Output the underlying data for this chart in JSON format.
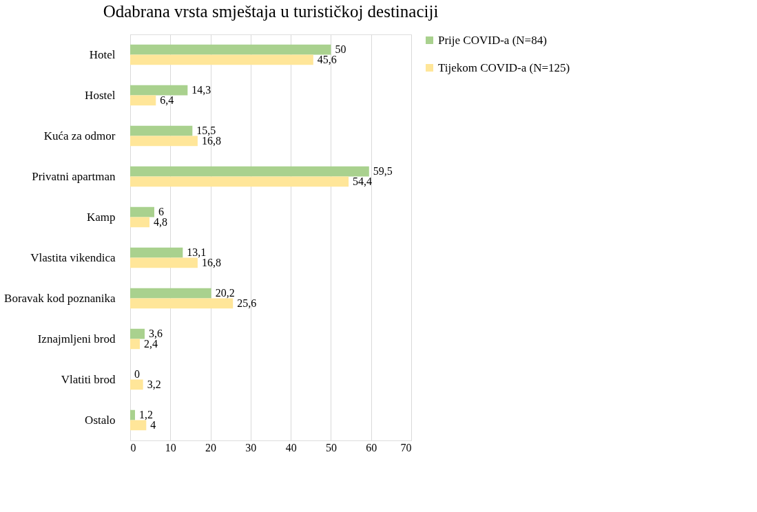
{
  "chart_data": {
    "type": "bar",
    "orientation": "horizontal",
    "title": "Odabrana  vrsta smještaja u turističkoj  destinaciji",
    "categories": [
      "Hotel",
      "Hostel",
      "Kuća za odmor",
      "Privatni apartman",
      "Kamp",
      "Vlastita vikendica",
      "Boravak kod poznanika",
      "Iznajmljeni brod",
      "Vlatiti brod",
      "Ostalo"
    ],
    "series": [
      {
        "name": "Prije COVID-a (N=84)",
        "color": "#a9d18e",
        "values": [
          50,
          14.3,
          15.5,
          59.5,
          6,
          13.1,
          20.2,
          3.6,
          0,
          1.2
        ],
        "value_labels": [
          "50",
          "14,3",
          "15,5",
          "59,5",
          "6",
          "13,1",
          "20,2",
          "3,6",
          "0",
          "1,2"
        ]
      },
      {
        "name": "Tijekom COVID-a (N=125)",
        "color": "#ffe699",
        "values": [
          45.6,
          6.4,
          16.8,
          54.4,
          4.8,
          16.8,
          25.6,
          2.4,
          3.2,
          4
        ],
        "value_labels": [
          "45,6",
          "6,4",
          "16,8",
          "54,4",
          "4,8",
          "16,8",
          "25,6",
          "2,4",
          "3,2",
          "4"
        ]
      }
    ],
    "xlim": [
      0,
      70
    ],
    "xticks": [
      0,
      10,
      20,
      30,
      40,
      50,
      60,
      70
    ],
    "grid": "x",
    "legend": "right"
  }
}
